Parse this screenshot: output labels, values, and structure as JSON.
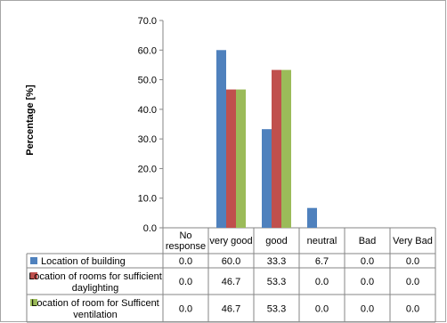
{
  "chart_data": {
    "type": "bar",
    "title": "",
    "xlabel": "",
    "ylabel": "Percentage [%]",
    "ylim": [
      0,
      70
    ],
    "yticks": [
      0,
      10,
      20,
      30,
      40,
      50,
      60,
      70
    ],
    "ytick_labels": [
      "0.0",
      "10.0",
      "20.0",
      "30.0",
      "40.0",
      "50.0",
      "60.0",
      "70.0"
    ],
    "categories": [
      "No response",
      "very good",
      "good",
      "neutral",
      "Bad",
      "Very Bad"
    ],
    "grid": false,
    "legend": "data-table-below",
    "series": [
      {
        "name": "Location of building",
        "color": "#4f81bd",
        "values": [
          0.0,
          60.0,
          33.3,
          6.7,
          0.0,
          0.0
        ],
        "labels": [
          "0.0",
          "60.0",
          "33.3",
          "6.7",
          "0.0",
          "0.0"
        ]
      },
      {
        "name": "Location of rooms for sufficient daylighting",
        "color": "#c0504d",
        "values": [
          0.0,
          46.7,
          53.3,
          0.0,
          0.0,
          0.0
        ],
        "labels": [
          "0.0",
          "46.7",
          "53.3",
          "0.0",
          "0.0",
          "0.0"
        ]
      },
      {
        "name": "Location of room for Sufficent ventilation",
        "color": "#9bbb59",
        "values": [
          0.0,
          46.7,
          53.3,
          0.0,
          0.0,
          0.0
        ],
        "labels": [
          "0.0",
          "46.7",
          "53.3",
          "0.0",
          "0.0",
          "0.0"
        ]
      }
    ]
  }
}
